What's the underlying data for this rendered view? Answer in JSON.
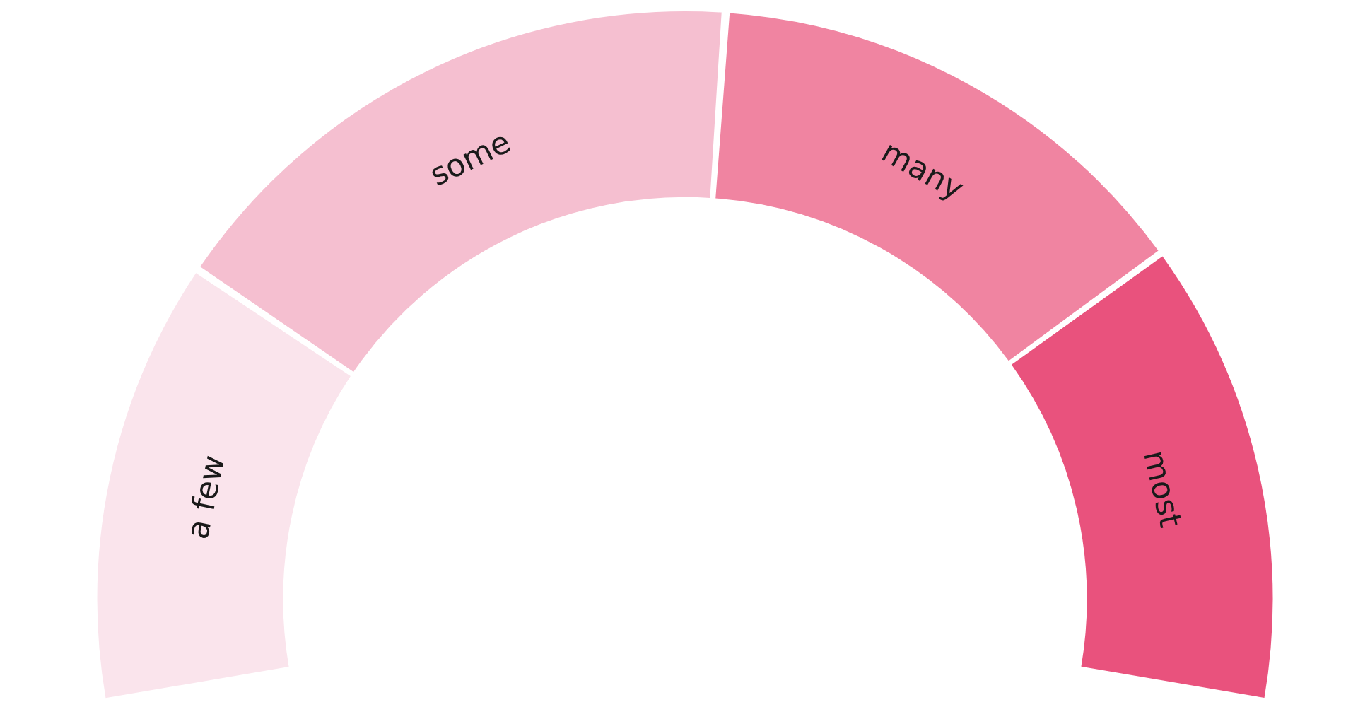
{
  "chart_data": {
    "type": "donut",
    "categories": [
      "a few",
      "some",
      "many",
      "most"
    ],
    "values": [
      22,
      30,
      25,
      23
    ],
    "colors": [
      "#fae4ec",
      "#f5bfd0",
      "#f084a1",
      "#e9527d"
    ],
    "legend": false
  }
}
